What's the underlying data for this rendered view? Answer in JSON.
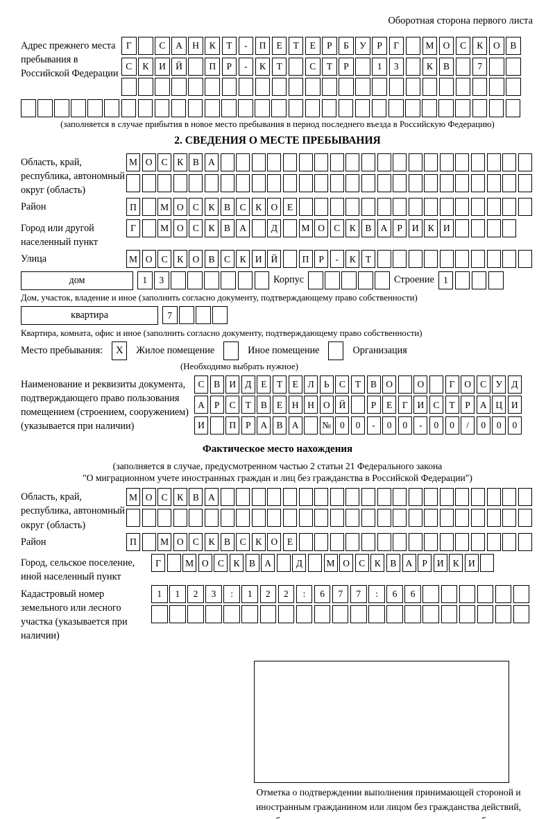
{
  "page": {
    "header_note": "Оборотная сторона первого листа"
  },
  "prev_address": {
    "label": "Адрес прежнего места пребывания в Российской Федерации",
    "rows": [
      [
        "Г",
        "",
        "С",
        "А",
        "Н",
        "К",
        "Т",
        "-",
        "П",
        "Е",
        "Т",
        "Е",
        "Р",
        "Б",
        "У",
        "Р",
        "Г",
        "",
        "М",
        "О",
        "С",
        "К",
        "О",
        "В"
      ],
      [
        "С",
        "К",
        "И",
        "Й",
        "",
        "П",
        "Р",
        "-",
        "К",
        "Т",
        "",
        "С",
        "Т",
        "Р",
        "",
        "1",
        "3",
        "",
        "К",
        "В",
        "",
        "7",
        "",
        ""
      ],
      24,
      30
    ],
    "caption": "(заполняется в случае прибытия в новое место пребывания в период последнего въезда в Российскую Федерацию)"
  },
  "section2": {
    "title": "2. СВЕДЕНИЯ О МЕСТЕ ПРЕБЫВАНИЯ",
    "region": {
      "label": "Область, край, республика, автономный округ (область)",
      "rows": [
        [
          "М",
          "О",
          "С",
          "К",
          "В",
          "А",
          "",
          "",
          "",
          "",
          "",
          "",
          "",
          "",
          "",
          "",
          "",
          "",
          "",
          "",
          "",
          "",
          "",
          "",
          "",
          ""
        ],
        26
      ]
    },
    "district": {
      "label": "Район",
      "cells": [
        "П",
        "",
        "М",
        "О",
        "С",
        "К",
        "В",
        "С",
        "К",
        "О",
        "Е",
        "",
        "",
        "",
        "",
        "",
        "",
        "",
        "",
        "",
        "",
        "",
        "",
        "",
        "",
        ""
      ]
    },
    "city": {
      "label": "Город или другой населенный пункт",
      "cells": [
        "Г",
        "",
        "М",
        "О",
        "С",
        "К",
        "В",
        "А",
        "",
        "Д",
        "",
        "М",
        "О",
        "С",
        "К",
        "В",
        "А",
        "Р",
        "И",
        "К",
        "И",
        "",
        "",
        "",
        ""
      ]
    },
    "street": {
      "label": "Улица",
      "cells": [
        "М",
        "О",
        "С",
        "К",
        "О",
        "В",
        "С",
        "К",
        "И",
        "Й",
        "",
        "П",
        "Р",
        "-",
        "К",
        "Т",
        "",
        "",
        "",
        "",
        "",
        "",
        "",
        "",
        "",
        ""
      ]
    },
    "house": {
      "box_label": "дом",
      "cells": [
        "1",
        "3",
        "",
        "",
        "",
        "",
        "",
        ""
      ],
      "korpus_label": "Корпус",
      "korpus_cells": 5,
      "stroenie_label": "Строение",
      "stroenie_cells": [
        "1",
        "",
        "",
        ""
      ]
    },
    "house_caption": "Дом, участок, владение и иное (заполнить согласно документу, подтверждающему право собственности)",
    "apartment": {
      "box_label": "квартира",
      "cells": [
        "7",
        "",
        "",
        ""
      ]
    },
    "apartment_caption": "Квартира, комната, офис и иное (заполнить согласно документу, подтверждающему право собственности)",
    "stay_type": {
      "label": "Место пребывания:",
      "options": [
        {
          "label": "Жилое помещение",
          "checked": "X"
        },
        {
          "label": "Иное помещение",
          "checked": ""
        },
        {
          "label": "Организация",
          "checked": ""
        }
      ],
      "caption": "(Необходимо выбрать нужное)"
    },
    "document": {
      "label": "Наименование и реквизиты документа, подтверждающего право пользования помещением (строением, сооружением) (указывается при наличии)",
      "rows": [
        [
          "С",
          "В",
          "И",
          "Д",
          "Е",
          "Т",
          "Е",
          "Л",
          "Ь",
          "С",
          "Т",
          "В",
          "О",
          "",
          "О",
          "",
          "Г",
          "О",
          "С",
          "У",
          "Д"
        ],
        [
          "А",
          "Р",
          "С",
          "Т",
          "В",
          "Е",
          "Н",
          "Н",
          "О",
          "Й",
          "",
          "Р",
          "Е",
          "Г",
          "И",
          "С",
          "Т",
          "Р",
          "А",
          "Ц",
          "И"
        ],
        [
          "И",
          "",
          "П",
          "Р",
          "А",
          "В",
          "А",
          "",
          "№",
          "0",
          "0",
          "-",
          "0",
          "0",
          "-",
          "0",
          "0",
          "/",
          "0",
          "0",
          "0"
        ]
      ]
    }
  },
  "actual_location": {
    "title": "Фактическое место нахождения",
    "note_line1": "(заполняется в случае, предусмотренном частью 2 статьи 21 Федерального закона",
    "note_line2": "\"О миграционном учете иностранных граждан и лиц без гражданства в Российской Федерации\")",
    "region": {
      "label": "Область, край, республика, автономный округ (область)",
      "rows": [
        [
          "М",
          "О",
          "С",
          "К",
          "В",
          "А",
          "",
          "",
          "",
          "",
          "",
          "",
          "",
          "",
          "",
          "",
          "",
          "",
          "",
          "",
          "",
          "",
          "",
          "",
          "",
          ""
        ],
        26
      ]
    },
    "district": {
      "label": "Район",
      "cells": [
        "П",
        "",
        "М",
        "О",
        "С",
        "К",
        "В",
        "С",
        "К",
        "О",
        "Е",
        "",
        "",
        "",
        "",
        "",
        "",
        "",
        "",
        "",
        "",
        "",
        "",
        "",
        "",
        ""
      ]
    },
    "city": {
      "label": "Город, сельское поселение, иной населенный пункт",
      "cells": [
        "Г",
        "",
        "М",
        "О",
        "С",
        "К",
        "В",
        "А",
        "",
        "Д",
        "",
        "М",
        "О",
        "С",
        "К",
        "В",
        "А",
        "Р",
        "И",
        "К",
        "И",
        ""
      ]
    },
    "cadastral": {
      "label": "Кадастровый номер земельного или лесного участка (указывается при наличии)",
      "rows": [
        [
          "1",
          "1",
          "2",
          "3",
          ":",
          "1",
          "2",
          "2",
          ":",
          "6",
          "7",
          "7",
          ":",
          "6",
          "6",
          "",
          "",
          "",
          "",
          "",
          ""
        ],
        21
      ]
    },
    "stamp_caption": "Отметка о подтверждении выполнения принимающей стороной и иностранным гражданином или лицом без гражданства действий, необходимых для его постановки на учет по месту пребывания"
  }
}
